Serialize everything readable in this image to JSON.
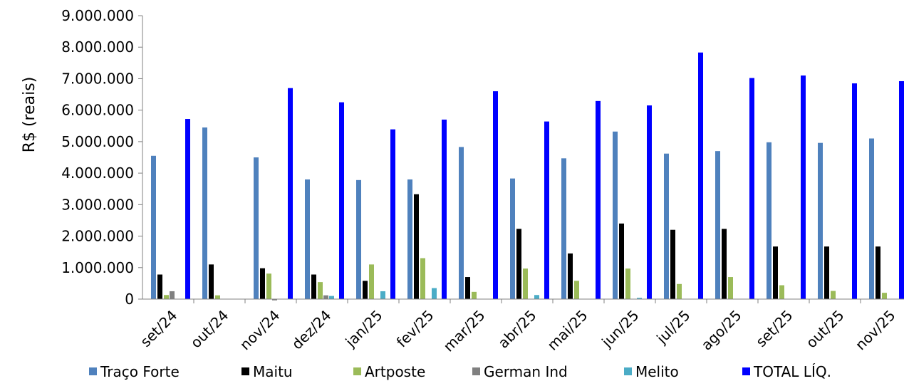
{
  "chart_data": {
    "type": "bar",
    "title": "",
    "xlabel": "",
    "ylabel": "R$ (reais)",
    "ylim": [
      0,
      9000000
    ],
    "yticks": [
      0,
      1000000,
      2000000,
      3000000,
      4000000,
      5000000,
      6000000,
      7000000,
      8000000,
      9000000
    ],
    "ytick_labels": [
      "0",
      "1.000.000",
      "2.000.000",
      "3.000.000",
      "4.000.000",
      "5.000.000",
      "6.000.000",
      "7.000.000",
      "8.000.000",
      "9.000.000"
    ],
    "grid": "none",
    "legend_position": "bottom",
    "categories": [
      "set/24",
      "out/24",
      "nov/24",
      "dez/24",
      "jan/25",
      "fev/25",
      "mar/25",
      "abr/25",
      "mai/25",
      "jun/25",
      "jul/25",
      "ago/25",
      "set/25",
      "out/25",
      "nov/25"
    ],
    "series": [
      {
        "name": "Traço Forte",
        "color": "#4f81bd",
        "values": [
          4550000,
          5450000,
          4500000,
          3800000,
          3780000,
          3800000,
          4830000,
          3830000,
          4470000,
          5320000,
          4620000,
          4700000,
          4980000,
          4960000,
          5100000
        ]
      },
      {
        "name": "Maitu",
        "color": "#000000",
        "values": [
          780000,
          1100000,
          980000,
          780000,
          580000,
          3330000,
          700000,
          2230000,
          1450000,
          2400000,
          2200000,
          2230000,
          1670000,
          1670000,
          1670000
        ]
      },
      {
        "name": "Artposte",
        "color": "#9bbb59",
        "values": [
          130000,
          120000,
          810000,
          540000,
          1100000,
          1300000,
          230000,
          970000,
          580000,
          970000,
          480000,
          700000,
          440000,
          260000,
          200000
        ]
      },
      {
        "name": "German Ind",
        "color": "#808080",
        "values": [
          250000,
          0,
          -40000,
          120000,
          0,
          0,
          0,
          0,
          0,
          0,
          0,
          0,
          0,
          0,
          0
        ]
      },
      {
        "name": "Melito",
        "color": "#4bacc6",
        "values": [
          0,
          0,
          0,
          100000,
          250000,
          350000,
          0,
          130000,
          0,
          40000,
          0,
          0,
          0,
          0,
          0
        ]
      },
      {
        "name": "TOTAL LÍQ.",
        "color": "#0000ff",
        "values": [
          5720000,
          0,
          6700000,
          6250000,
          5390000,
          5700000,
          6600000,
          5640000,
          6290000,
          6150000,
          7830000,
          7020000,
          7100000,
          6850000,
          6770000
        ]
      }
    ],
    "total_extra_value": 6920000
  }
}
